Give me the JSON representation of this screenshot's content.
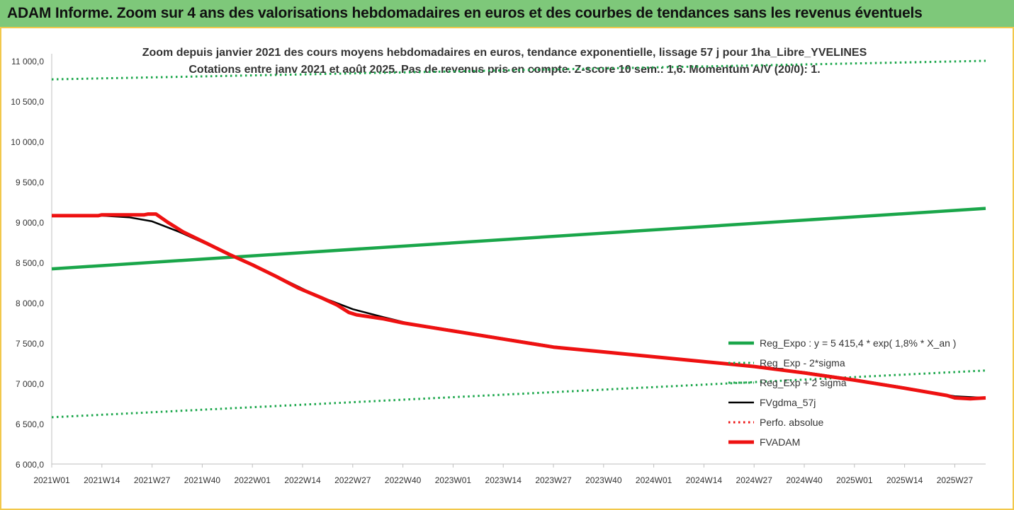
{
  "header": {
    "title": "ADAM Informe. Zoom sur 4 ans des valorisations hebdomadaires en euros et des courbes de tendances sans les revenus éventuels"
  },
  "colors": {
    "green": "#1aa64a",
    "black": "#000000",
    "red": "#ee1111",
    "header_bg": "#7ec87a",
    "frame": "#f2c84b"
  },
  "chart_data": {
    "type": "line",
    "title_lines": [
      "Zoom depuis janvier 2021 des cours moyens hebdomadaires en euros, tendance exponentielle, lissage 57 j pour 1ha_Libre_YVELINES",
      "Cotations entre janv 2021 et août 2025.  Pas de revenus pris en compte. Z-score 10 sem.: 1,6. Momentum A/V (20/0): 1."
    ],
    "x_ticks": [
      "2021W01",
      "2021W14",
      "2021W27",
      "2021W40",
      "2022W01",
      "2022W14",
      "2022W27",
      "2022W40",
      "2023W01",
      "2023W14",
      "2023W27",
      "2023W40",
      "2024W01",
      "2024W14",
      "2024W27",
      "2024W40",
      "2025W01",
      "2025W14",
      "2025W27"
    ],
    "y_ticks": [
      "6 000,0",
      "6 500,0",
      "7 000,0",
      "7 500,0",
      "8 000,0",
      "8 500,0",
      "9 000,0",
      "9 500,0",
      "10 000,0",
      "10 500,0",
      "11 000,0"
    ],
    "ylim": [
      6000,
      11000
    ],
    "x_range_weeks": [
      0,
      242
    ],
    "grid": false,
    "legend_position": "right",
    "series": [
      {
        "name": "Reg_Expo : y = 5 415,4 * exp( 1,8% *  X_an )",
        "style": "solid-thick",
        "color": "#1aa64a",
        "points": [
          [
            0,
            8420
          ],
          [
            242,
            9170
          ]
        ]
      },
      {
        "name": "Reg_Exp - 2*sigma",
        "style": "dotted",
        "color": "#1aa64a",
        "points": [
          [
            0,
            6580
          ],
          [
            242,
            7160
          ]
        ]
      },
      {
        "name": "Reg_Exp + 2 sigma",
        "style": "dotted",
        "color": "#1aa64a",
        "points": [
          [
            0,
            10770
          ],
          [
            242,
            11000
          ]
        ]
      },
      {
        "name": "FVgdma_57j",
        "style": "solid",
        "color": "#000000",
        "points": [
          [
            0,
            9080
          ],
          [
            10,
            9080
          ],
          [
            13,
            9080
          ],
          [
            20,
            9060
          ],
          [
            26,
            9010
          ],
          [
            33,
            8880
          ],
          [
            40,
            8730
          ],
          [
            46,
            8590
          ],
          [
            52,
            8470
          ],
          [
            60,
            8290
          ],
          [
            66,
            8150
          ],
          [
            72,
            8030
          ],
          [
            78,
            7920
          ],
          [
            86,
            7820
          ],
          [
            92,
            7750
          ],
          [
            104,
            7660
          ],
          [
            117,
            7560
          ],
          [
            130,
            7460
          ],
          [
            143,
            7390
          ],
          [
            156,
            7330
          ],
          [
            169,
            7270
          ],
          [
            182,
            7210
          ],
          [
            195,
            7140
          ],
          [
            208,
            7050
          ],
          [
            221,
            6950
          ],
          [
            234,
            6840
          ],
          [
            242,
            6820
          ]
        ]
      },
      {
        "name": "Perfo. absolue",
        "style": "dotted",
        "color": "#ee1111",
        "points": []
      },
      {
        "name": "FVADAM",
        "style": "solid-thick",
        "color": "#ee1111",
        "points": [
          [
            0,
            9080
          ],
          [
            12,
            9080
          ],
          [
            13,
            9090
          ],
          [
            24,
            9090
          ],
          [
            25,
            9100
          ],
          [
            27,
            9100
          ],
          [
            30,
            9000
          ],
          [
            34,
            8880
          ],
          [
            40,
            8740
          ],
          [
            46,
            8600
          ],
          [
            52,
            8470
          ],
          [
            58,
            8330
          ],
          [
            64,
            8180
          ],
          [
            70,
            8060
          ],
          [
            74,
            7970
          ],
          [
            77,
            7880
          ],
          [
            79,
            7850
          ],
          [
            86,
            7800
          ],
          [
            91,
            7750
          ],
          [
            104,
            7650
          ],
          [
            117,
            7550
          ],
          [
            130,
            7450
          ],
          [
            143,
            7390
          ],
          [
            156,
            7330
          ],
          [
            169,
            7270
          ],
          [
            182,
            7210
          ],
          [
            195,
            7130
          ],
          [
            208,
            7040
          ],
          [
            221,
            6940
          ],
          [
            232,
            6850
          ],
          [
            234,
            6820
          ],
          [
            238,
            6810
          ],
          [
            242,
            6820
          ]
        ]
      }
    ]
  }
}
